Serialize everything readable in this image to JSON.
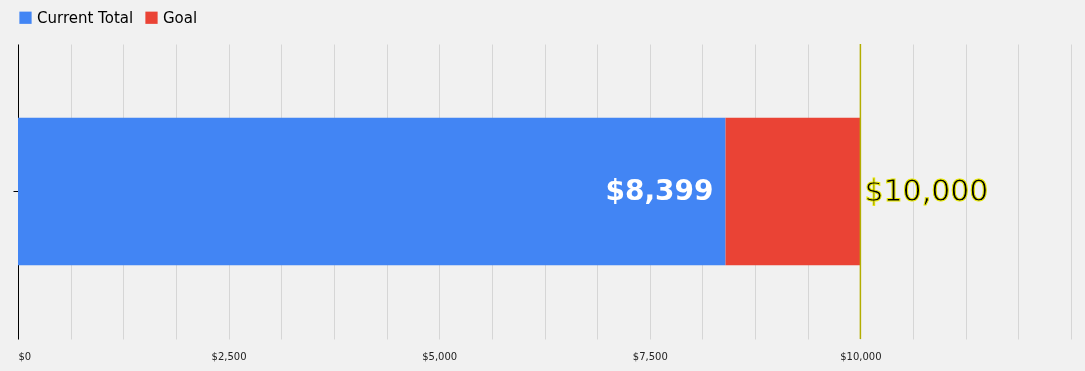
{
  "chart_data": {
    "type": "bar",
    "orientation": "horizontal",
    "stacked": true,
    "categories": [
      null
    ],
    "series": [
      {
        "name": "Current Total",
        "color": "#4285f4",
        "values": [
          8399
        ],
        "value_labels": [
          "$8,399"
        ]
      },
      {
        "name": "Goal",
        "color": "#ea4335",
        "values": [
          1601
        ],
        "value_labels": [
          null
        ]
      }
    ],
    "totals": [
      "$10,000"
    ],
    "xlim": [
      0,
      12500
    ],
    "xticks": [
      {
        "value": 0,
        "label": "$0"
      },
      {
        "value": 625,
        "label": null
      },
      {
        "value": 1250,
        "label": null
      },
      {
        "value": 1875,
        "label": null
      },
      {
        "value": 2500,
        "label": "$2,500"
      },
      {
        "value": 3125,
        "label": null
      },
      {
        "value": 3750,
        "label": null
      },
      {
        "value": 4375,
        "label": null
      },
      {
        "value": 5000,
        "label": "$5,000"
      },
      {
        "value": 5625,
        "label": null
      },
      {
        "value": 6250,
        "label": null
      },
      {
        "value": 6875,
        "label": null
      },
      {
        "value": 7500,
        "label": "$7,500"
      },
      {
        "value": 8125,
        "label": null
      },
      {
        "value": 8750,
        "label": null
      },
      {
        "value": 9375,
        "label": null
      },
      {
        "value": 10000,
        "label": "$10,000"
      },
      {
        "value": 10625,
        "label": null
      },
      {
        "value": 11250,
        "label": null
      },
      {
        "value": 11875,
        "label": null
      },
      {
        "value": 12500,
        "label": null
      }
    ],
    "ref_lines": [
      {
        "axis": "x",
        "value": 10000,
        "color": "#b3ad00"
      }
    ],
    "grid": "x",
    "legend": "top"
  }
}
